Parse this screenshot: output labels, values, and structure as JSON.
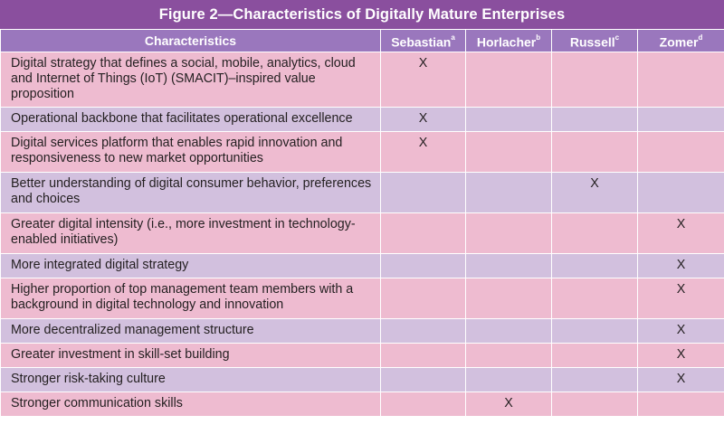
{
  "title": "Figure 2—Characteristics of Digitally Mature Enterprises",
  "headers": {
    "characteristics": "Characteristics",
    "sebastian": "Sebastian",
    "sebastian_note": "a",
    "horlacher": "Horlacher",
    "horlacher_note": "b",
    "russell": "Russell",
    "russell_note": "c",
    "zomer": "Zomer",
    "zomer_note": "d"
  },
  "rows": [
    {
      "text": "Digital strategy that defines a social, mobile, analytics, cloud and Internet of Things (IoT) (SMACIT)–inspired value proposition",
      "sebastian": "X",
      "horlacher": "",
      "russell": "",
      "zomer": ""
    },
    {
      "text": "Operational backbone that facilitates operational excellence",
      "sebastian": "X",
      "horlacher": "",
      "russell": "",
      "zomer": ""
    },
    {
      "text": "Digital services platform that enables rapid innovation and responsiveness to new market opportunities",
      "sebastian": "X",
      "horlacher": "",
      "russell": "",
      "zomer": ""
    },
    {
      "text": "Better understanding of digital consumer behavior, preferences and choices",
      "sebastian": "",
      "horlacher": "",
      "russell": "X",
      "zomer": ""
    },
    {
      "text": "Greater digital intensity (i.e., more investment in technology-enabled initiatives)",
      "sebastian": "",
      "horlacher": "",
      "russell": "",
      "zomer": "X"
    },
    {
      "text": "More integrated digital strategy",
      "sebastian": "",
      "horlacher": "",
      "russell": "",
      "zomer": "X"
    },
    {
      "text": "Higher proportion of top management team members with a background in digital technology and innovation",
      "sebastian": "",
      "horlacher": "",
      "russell": "",
      "zomer": "X"
    },
    {
      "text": "More decentralized management structure",
      "sebastian": "",
      "horlacher": "",
      "russell": "",
      "zomer": "X"
    },
    {
      "text": "Greater investment in skill-set building",
      "sebastian": "",
      "horlacher": "",
      "russell": "",
      "zomer": "X"
    },
    {
      "text": "Stronger risk-taking culture",
      "sebastian": "",
      "horlacher": "",
      "russell": "",
      "zomer": "X"
    },
    {
      "text": "Stronger communication skills",
      "sebastian": "",
      "horlacher": "X",
      "russell": "",
      "zomer": ""
    }
  ],
  "colors": {
    "title_bg": "#8a4f9e",
    "header_bg": "#9a77bd",
    "row_pink": "#eebbd0",
    "row_lavender": "#d2c0de"
  }
}
